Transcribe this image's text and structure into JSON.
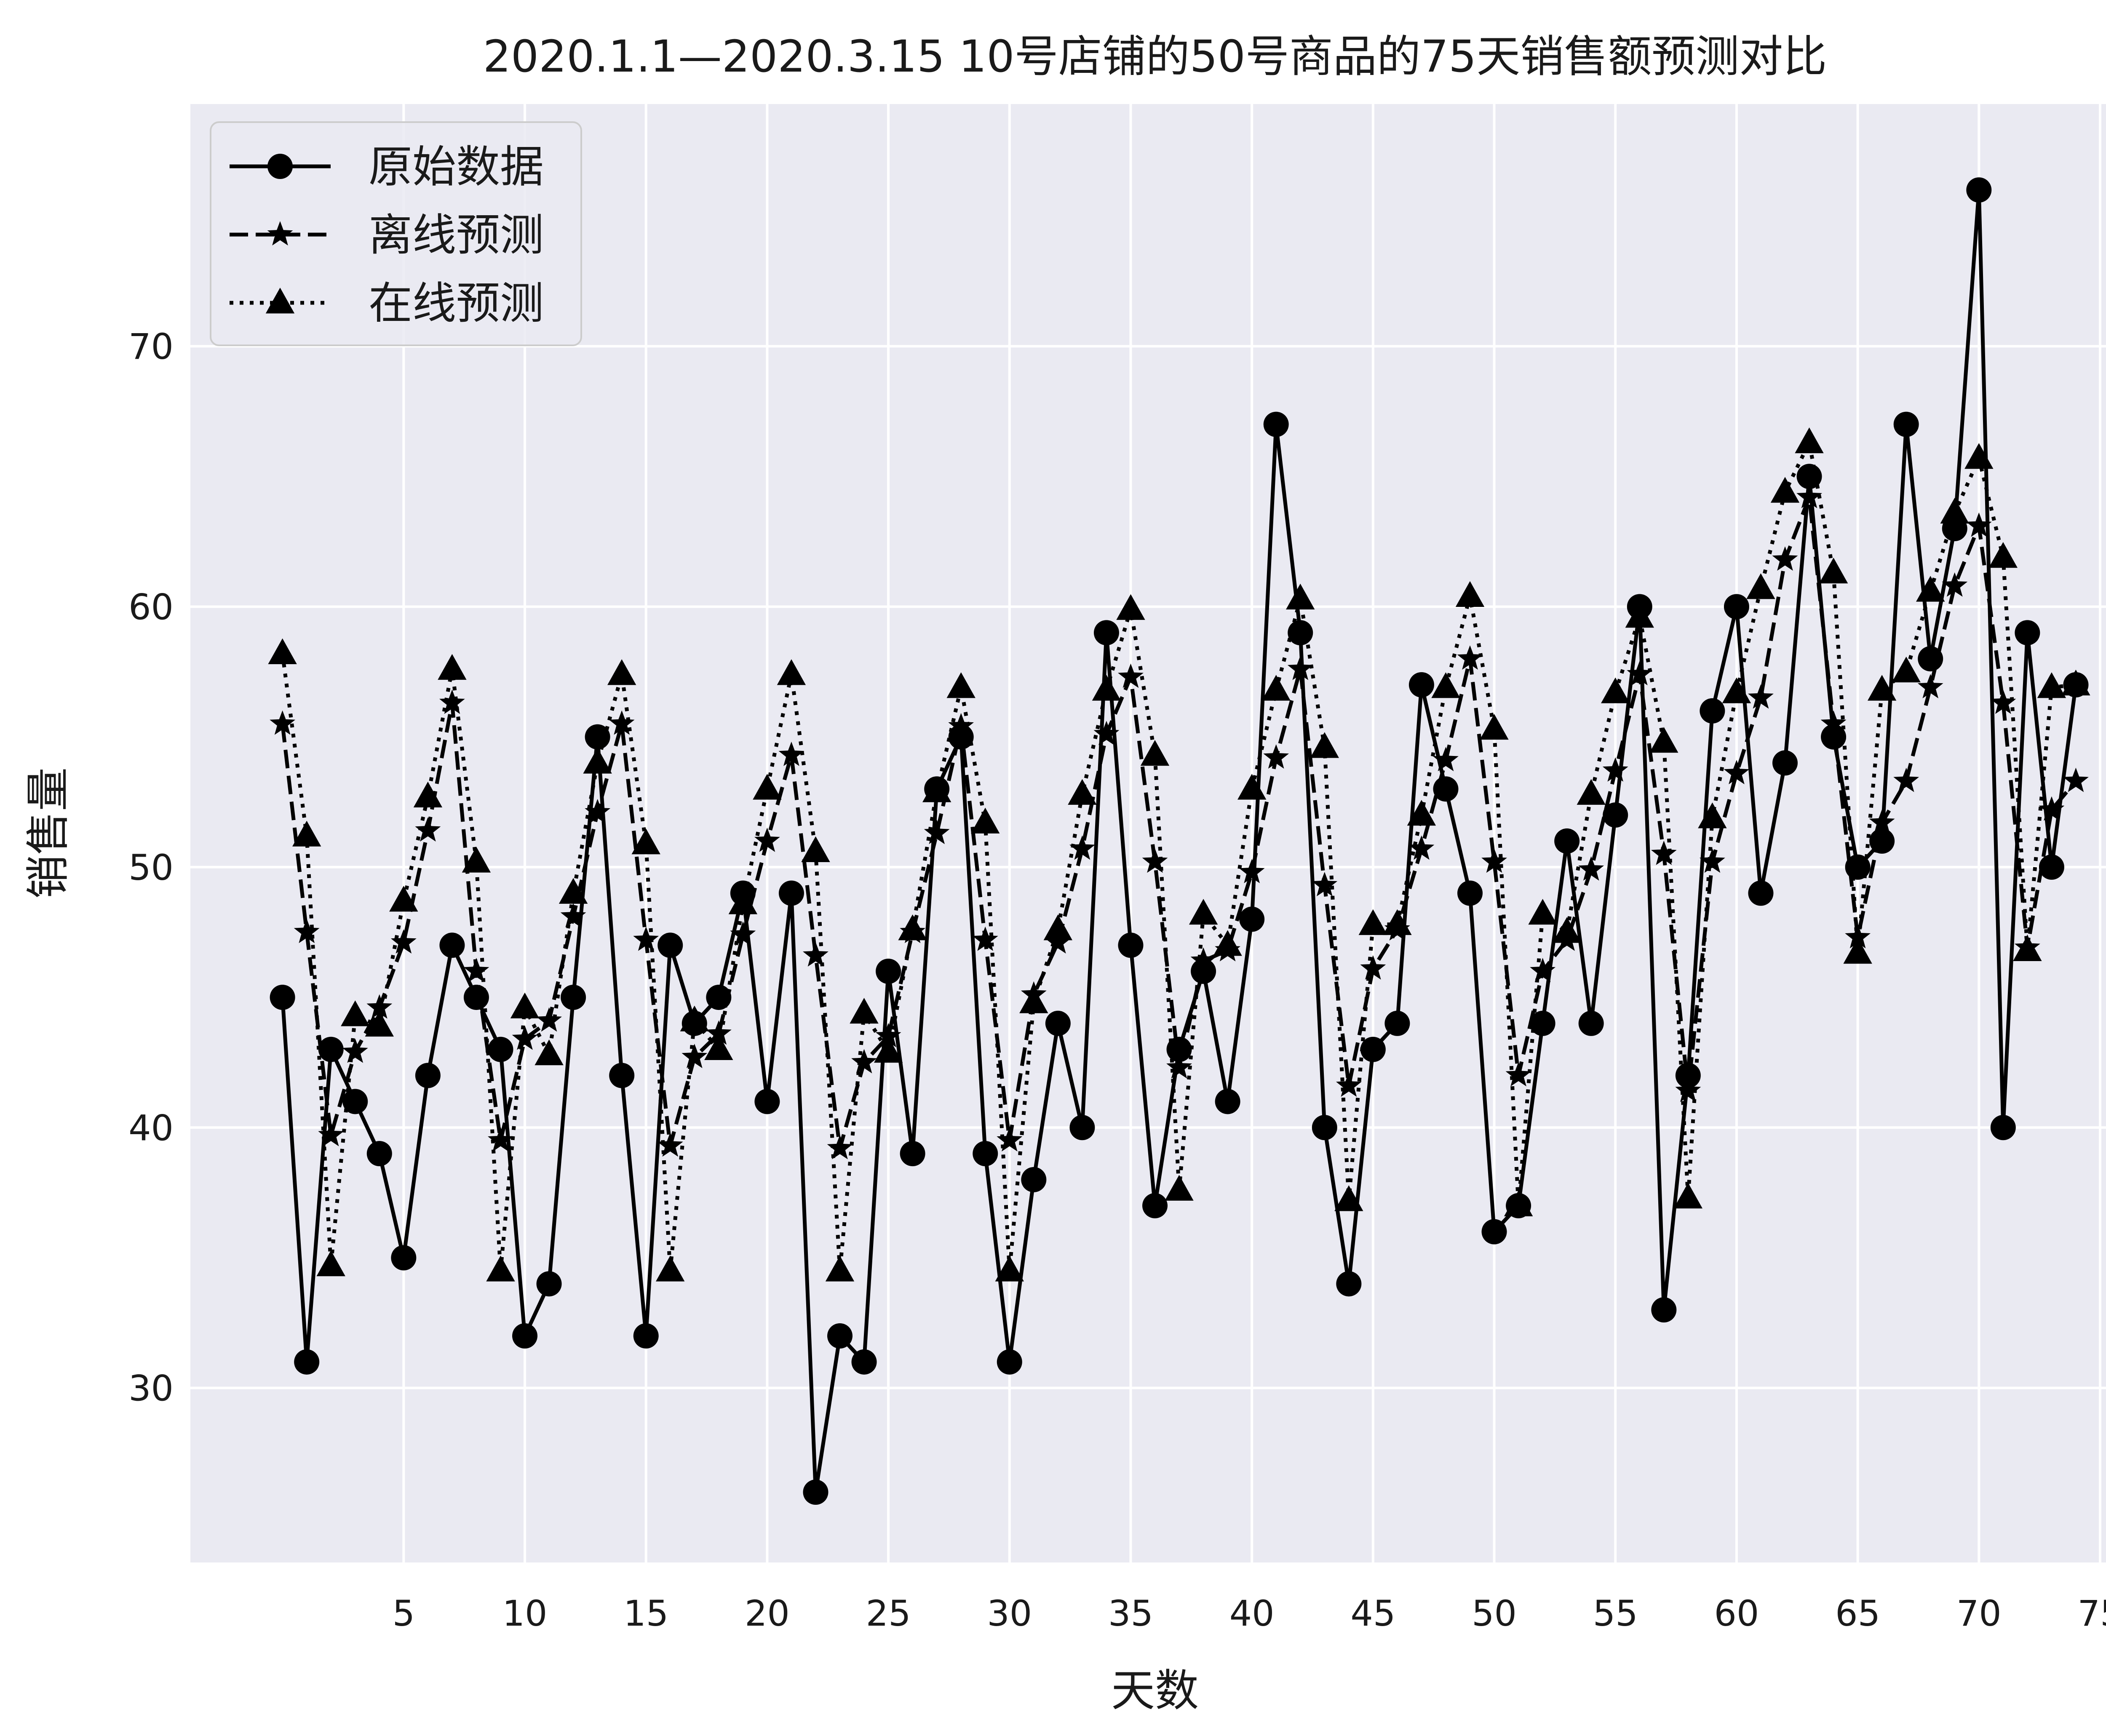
{
  "chart_data": {
    "type": "line",
    "title": "2020.1.1—2020.3.15 10号店铺的50号商品的75天销售额预测对比",
    "xlabel": "天数",
    "ylabel": "销售量",
    "xlim": [
      -3.8,
      75.8
    ],
    "ylim": [
      23.3,
      79.3
    ],
    "x_ticks": [
      5,
      10,
      15,
      20,
      25,
      30,
      35,
      40,
      45,
      50,
      55,
      60,
      65,
      70,
      75
    ],
    "y_ticks": [
      30,
      40,
      50,
      60,
      70
    ],
    "grid": true,
    "legend_position": "top-left",
    "background_color": "#eaeaf2",
    "series": [
      {
        "name": "原始数据",
        "line_style": "solid",
        "marker": "circle",
        "color": "#000000",
        "x": [
          0,
          1,
          2,
          3,
          4,
          5,
          6,
          7,
          8,
          9,
          10,
          11,
          12,
          13,
          14,
          15,
          16,
          17,
          18,
          19,
          20,
          21,
          22,
          23,
          24,
          25,
          26,
          27,
          28,
          29,
          30,
          31,
          32,
          33,
          34,
          35,
          36,
          37,
          38,
          39,
          40,
          41,
          42,
          43,
          44,
          45,
          46,
          47,
          48,
          49,
          50,
          51,
          52,
          53,
          54,
          55,
          56,
          57,
          58,
          59,
          60,
          61,
          62,
          63,
          64,
          65,
          66,
          67,
          68,
          69,
          70,
          71,
          72,
          73,
          74
        ],
        "values": [
          45,
          31,
          43,
          41,
          39,
          35,
          42,
          47,
          45,
          43,
          32,
          34,
          45,
          55,
          42,
          32,
          47,
          44,
          45,
          49,
          41,
          49,
          26,
          32,
          31,
          46,
          39,
          53,
          55,
          39,
          31,
          38,
          44,
          40,
          59,
          47,
          37,
          43,
          46,
          41,
          48,
          67,
          59,
          40,
          34,
          43,
          44,
          57,
          53,
          49,
          36,
          37,
          44,
          51,
          44,
          52,
          60,
          33,
          42,
          56,
          60,
          49,
          54,
          65,
          55,
          50,
          51,
          67,
          58,
          63,
          76,
          40,
          59,
          50,
          57
        ]
      },
      {
        "name": "离线预测",
        "line_style": "dashed",
        "marker": "star",
        "color": "#000000",
        "x": [
          0,
          1,
          2,
          3,
          4,
          5,
          6,
          7,
          8,
          9,
          10,
          11,
          12,
          13,
          14,
          15,
          16,
          17,
          18,
          19,
          20,
          21,
          22,
          23,
          24,
          25,
          26,
          27,
          28,
          29,
          30,
          31,
          32,
          33,
          34,
          35,
          36,
          37,
          38,
          39,
          40,
          41,
          42,
          43,
          44,
          45,
          46,
          47,
          48,
          49,
          50,
          51,
          52,
          53,
          54,
          55,
          56,
          57,
          58,
          59,
          60,
          61,
          62,
          63,
          64,
          65,
          66,
          67,
          68,
          69,
          70,
          71,
          72,
          73,
          74
        ],
        "values": [
          55.5,
          47.5,
          39.7,
          42.9,
          44.6,
          47.1,
          51.4,
          56.3,
          46.0,
          39.5,
          43.4,
          44.1,
          48.1,
          52.1,
          55.5,
          47.2,
          39.3,
          42.7,
          43.6,
          47.4,
          51.0,
          54.3,
          46.6,
          39.2,
          42.5,
          43.5,
          47.5,
          51.3,
          55.4,
          47.2,
          39.5,
          45.1,
          47.1,
          50.7,
          55.1,
          57.3,
          50.2,
          42.3,
          46.4,
          46.8,
          49.8,
          54.2,
          57.6,
          49.3,
          41.6,
          46.1,
          47.6,
          50.7,
          54.1,
          58.0,
          50.2,
          42.0,
          46.0,
          47.2,
          49.9,
          53.7,
          57.4,
          50.5,
          41.4,
          50.2,
          53.6,
          56.5,
          61.8,
          64.2,
          55.5,
          47.3,
          51.7,
          53.3,
          56.9,
          60.8,
          63.1,
          56.3,
          46.9,
          52.2,
          53.3
        ]
      },
      {
        "name": "在线预测",
        "line_style": "dotted",
        "marker": "triangle",
        "color": "#000000",
        "x": [
          0,
          1,
          2,
          3,
          4,
          5,
          6,
          7,
          8,
          9,
          10,
          11,
          12,
          13,
          14,
          15,
          16,
          17,
          18,
          19,
          20,
          21,
          22,
          23,
          24,
          25,
          26,
          27,
          28,
          29,
          30,
          31,
          32,
          33,
          34,
          35,
          36,
          37,
          38,
          39,
          40,
          41,
          42,
          43,
          44,
          45,
          46,
          47,
          48,
          49,
          50,
          51,
          52,
          53,
          54,
          55,
          56,
          57,
          58,
          59,
          60,
          61,
          62,
          63,
          64,
          65,
          66,
          67,
          68,
          69,
          70,
          71,
          72,
          73,
          74
        ],
        "values": [
          58.2,
          51.2,
          34.7,
          44.3,
          43.9,
          48.7,
          52.7,
          57.6,
          50.2,
          34.5,
          44.6,
          42.8,
          49.0,
          54.0,
          57.4,
          50.9,
          34.5,
          44.1,
          43.0,
          48.6,
          53.0,
          57.4,
          50.6,
          34.5,
          44.4,
          42.9,
          47.6,
          52.9,
          56.9,
          51.7,
          34.5,
          44.8,
          47.6,
          52.8,
          56.8,
          59.9,
          54.3,
          37.6,
          48.2,
          47.0,
          53.0,
          56.8,
          60.3,
          54.6,
          37.2,
          47.8,
          47.8,
          52.0,
          56.9,
          60.4,
          55.3,
          37.0,
          48.2,
          47.5,
          52.8,
          56.7,
          59.6,
          54.8,
          37.3,
          51.9,
          56.7,
          60.7,
          64.4,
          66.3,
          61.3,
          46.7,
          56.8,
          57.5,
          60.6,
          63.6,
          65.7,
          61.9,
          46.8,
          56.9,
          57.0
        ]
      }
    ]
  }
}
